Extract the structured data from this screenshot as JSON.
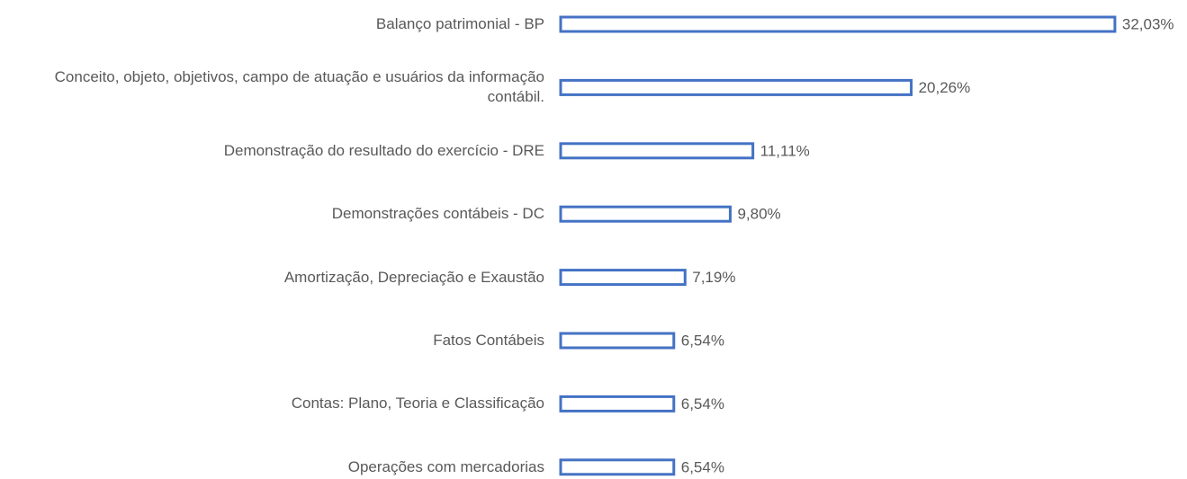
{
  "chart_data": {
    "type": "bar",
    "orientation": "horizontal",
    "categories": [
      "Balanço patrimonial - BP",
      "Conceito, objeto, objetivos, campo de atuação e usuários da informação contábil.",
      "Demonstração do resultado do exercício - DRE",
      "Demonstrações contábeis - DC",
      "Amortização, Depreciação e Exaustão",
      "Fatos Contábeis",
      "Contas: Plano, Teoria e Classificação",
      "Operações com mercadorias"
    ],
    "values": [
      32.03,
      20.26,
      11.11,
      9.8,
      7.19,
      6.54,
      6.54,
      6.54
    ],
    "value_labels": [
      "32,03%",
      "20,26%",
      "11,11%",
      "9,80%",
      "7,19%",
      "6,54%",
      "6,54%",
      "6,54%"
    ],
    "color": "#4472c4",
    "xlim": [
      0,
      35
    ]
  }
}
